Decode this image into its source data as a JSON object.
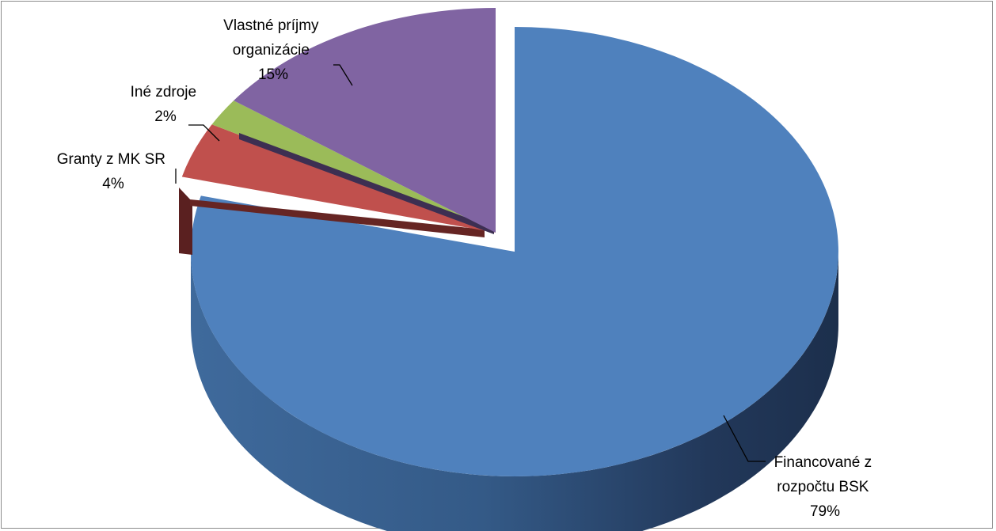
{
  "chart_data": {
    "type": "pie",
    "style": "3d-exploded",
    "title": "",
    "legend": "none",
    "slices": [
      {
        "label_lines": [
          "Financované z",
          "rozpočtu BSK"
        ],
        "percent_label": "79%",
        "value": 79,
        "color": "#4f81bd"
      },
      {
        "label_lines": [
          "Granty z MK SR"
        ],
        "percent_label": "4%",
        "value": 4,
        "color": "#c0504d"
      },
      {
        "label_lines": [
          "Iné zdroje"
        ],
        "percent_label": "2%",
        "value": 2,
        "color": "#9bbb59"
      },
      {
        "label_lines": [
          "Vlastné príjmy",
          "organizácie"
        ],
        "percent_label": "15%",
        "value": 15,
        "color": "#8064a2"
      }
    ]
  }
}
